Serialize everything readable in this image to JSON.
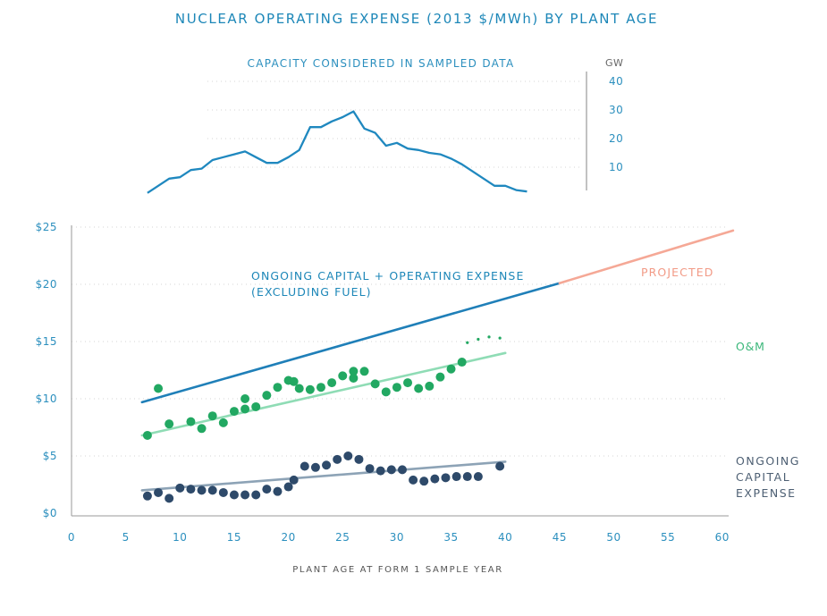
{
  "title": "NUCLEAR OPERATING EXPENSE (2013 $/MWh) BY PLANT AGE",
  "colors": {
    "title": "#1d87b8",
    "capacity": "#1f88bf",
    "total": "#1f7fb8",
    "projected": "#f5a896",
    "om_points": "#22a862",
    "om_trend": "#8fdcb5",
    "capital_points": "#2e4a6a",
    "capital_trend": "#8da3b6"
  },
  "chart_data": [
    {
      "type": "line",
      "title": "CAPACITY CONSIDERED IN SAMPLED DATA",
      "y_unit": "GW",
      "y_ticks": [
        10,
        20,
        30,
        40
      ],
      "ylim": [
        0,
        42
      ],
      "xlim": [
        0,
        61
      ],
      "grid": true,
      "series": [
        {
          "x": [
            7,
            8,
            9,
            10,
            11,
            12,
            13,
            14,
            15,
            16,
            17,
            18,
            19,
            20,
            21,
            22,
            23,
            24,
            25,
            26,
            27,
            28,
            29,
            30,
            31,
            32,
            33,
            34,
            35,
            36,
            37,
            38,
            39,
            40,
            41,
            42
          ],
          "values": [
            1,
            3.5,
            6,
            6.5,
            9,
            9.5,
            12.5,
            13.5,
            14.5,
            15.5,
            13.5,
            11.5,
            11.5,
            13.5,
            16,
            24,
            24,
            26,
            27.5,
            29.5,
            23.5,
            22,
            17.5,
            18.5,
            16.5,
            16,
            15,
            14.5,
            13,
            11,
            8.5,
            6,
            3.5,
            3.5,
            2,
            1.5
          ]
        }
      ]
    },
    {
      "type": "line",
      "xlabel": "PLANT AGE AT FORM 1 SAMPLE YEAR",
      "x_ticks": [
        0,
        5,
        10,
        15,
        20,
        25,
        30,
        35,
        40,
        45,
        50,
        55,
        60
      ],
      "y_tick_labels": [
        "$0",
        "$5",
        "$10",
        "$15",
        "$20",
        "$25"
      ],
      "xlim": [
        0,
        61
      ],
      "ylim": [
        0,
        25
      ],
      "grid": true,
      "series": [
        {
          "name": "ONGOING CAPITAL + OPERATING EXPENSE (EXCLUDING FUEL)",
          "kind": "trend",
          "x": [
            6.5,
            45
          ],
          "values": [
            9.7,
            20.1
          ]
        },
        {
          "name": "PROJECTED",
          "kind": "projection",
          "x": [
            45,
            61
          ],
          "values": [
            20.1,
            24.7
          ]
        },
        {
          "name": "O&M",
          "kind": "scatter+trend",
          "x": [
            7,
            8,
            9,
            11,
            12,
            13,
            14,
            15,
            16,
            16,
            17,
            18,
            19,
            20,
            20.5,
            21,
            22,
            23,
            24,
            25,
            26,
            26,
            27,
            28,
            29,
            30,
            31,
            32,
            33,
            34,
            35,
            36
          ],
          "values": [
            6.8,
            10.9,
            7.8,
            8.0,
            7.4,
            8.5,
            7.9,
            8.9,
            9.1,
            10.0,
            9.3,
            10.3,
            11.0,
            11.6,
            11.5,
            10.9,
            10.8,
            11.0,
            11.4,
            12.0,
            11.8,
            12.4,
            12.4,
            11.3,
            10.6,
            11.0,
            11.4,
            10.9,
            11.1,
            11.9,
            12.6,
            13.2
          ],
          "trend_x": [
            6.5,
            40
          ],
          "trend_values": [
            6.8,
            14.0
          ],
          "tail_x": [
            36.5,
            37.5,
            38.5,
            39.5
          ],
          "tail_values": [
            14.9,
            15.2,
            15.4,
            15.3
          ]
        },
        {
          "name": "ONGOING CAPITAL EXPENSE",
          "kind": "scatter+trend",
          "x": [
            7,
            8,
            9,
            10,
            11,
            12,
            13,
            14,
            15,
            16,
            17,
            18,
            19,
            20,
            20.5,
            21.5,
            22.5,
            23.5,
            24.5,
            25.5,
            26.5,
            27.5,
            28.5,
            29.5,
            30.5,
            31.5,
            32.5,
            33.5,
            34.5,
            35.5,
            36.5,
            37.5,
            39.5
          ],
          "values": [
            1.5,
            1.8,
            1.3,
            2.2,
            2.1,
            2.0,
            2.0,
            1.8,
            1.6,
            1.6,
            1.6,
            2.1,
            1.9,
            2.3,
            2.9,
            4.1,
            4.0,
            4.2,
            4.7,
            5.0,
            4.7,
            3.9,
            3.7,
            3.8,
            3.8,
            2.9,
            2.8,
            3.0,
            3.1,
            3.2,
            3.2,
            3.2,
            4.1
          ],
          "trend_x": [
            6.5,
            40
          ],
          "trend_values": [
            2.0,
            4.5
          ]
        }
      ],
      "labels": {
        "total_line1": "ONGOING CAPITAL + OPERATING EXPENSE",
        "total_line2": "(EXCLUDING FUEL)",
        "projected": "PROJECTED",
        "om": "O&M",
        "capital_line1": "ONGOING",
        "capital_line2": "CAPITAL",
        "capital_line3": "EXPENSE"
      }
    }
  ]
}
